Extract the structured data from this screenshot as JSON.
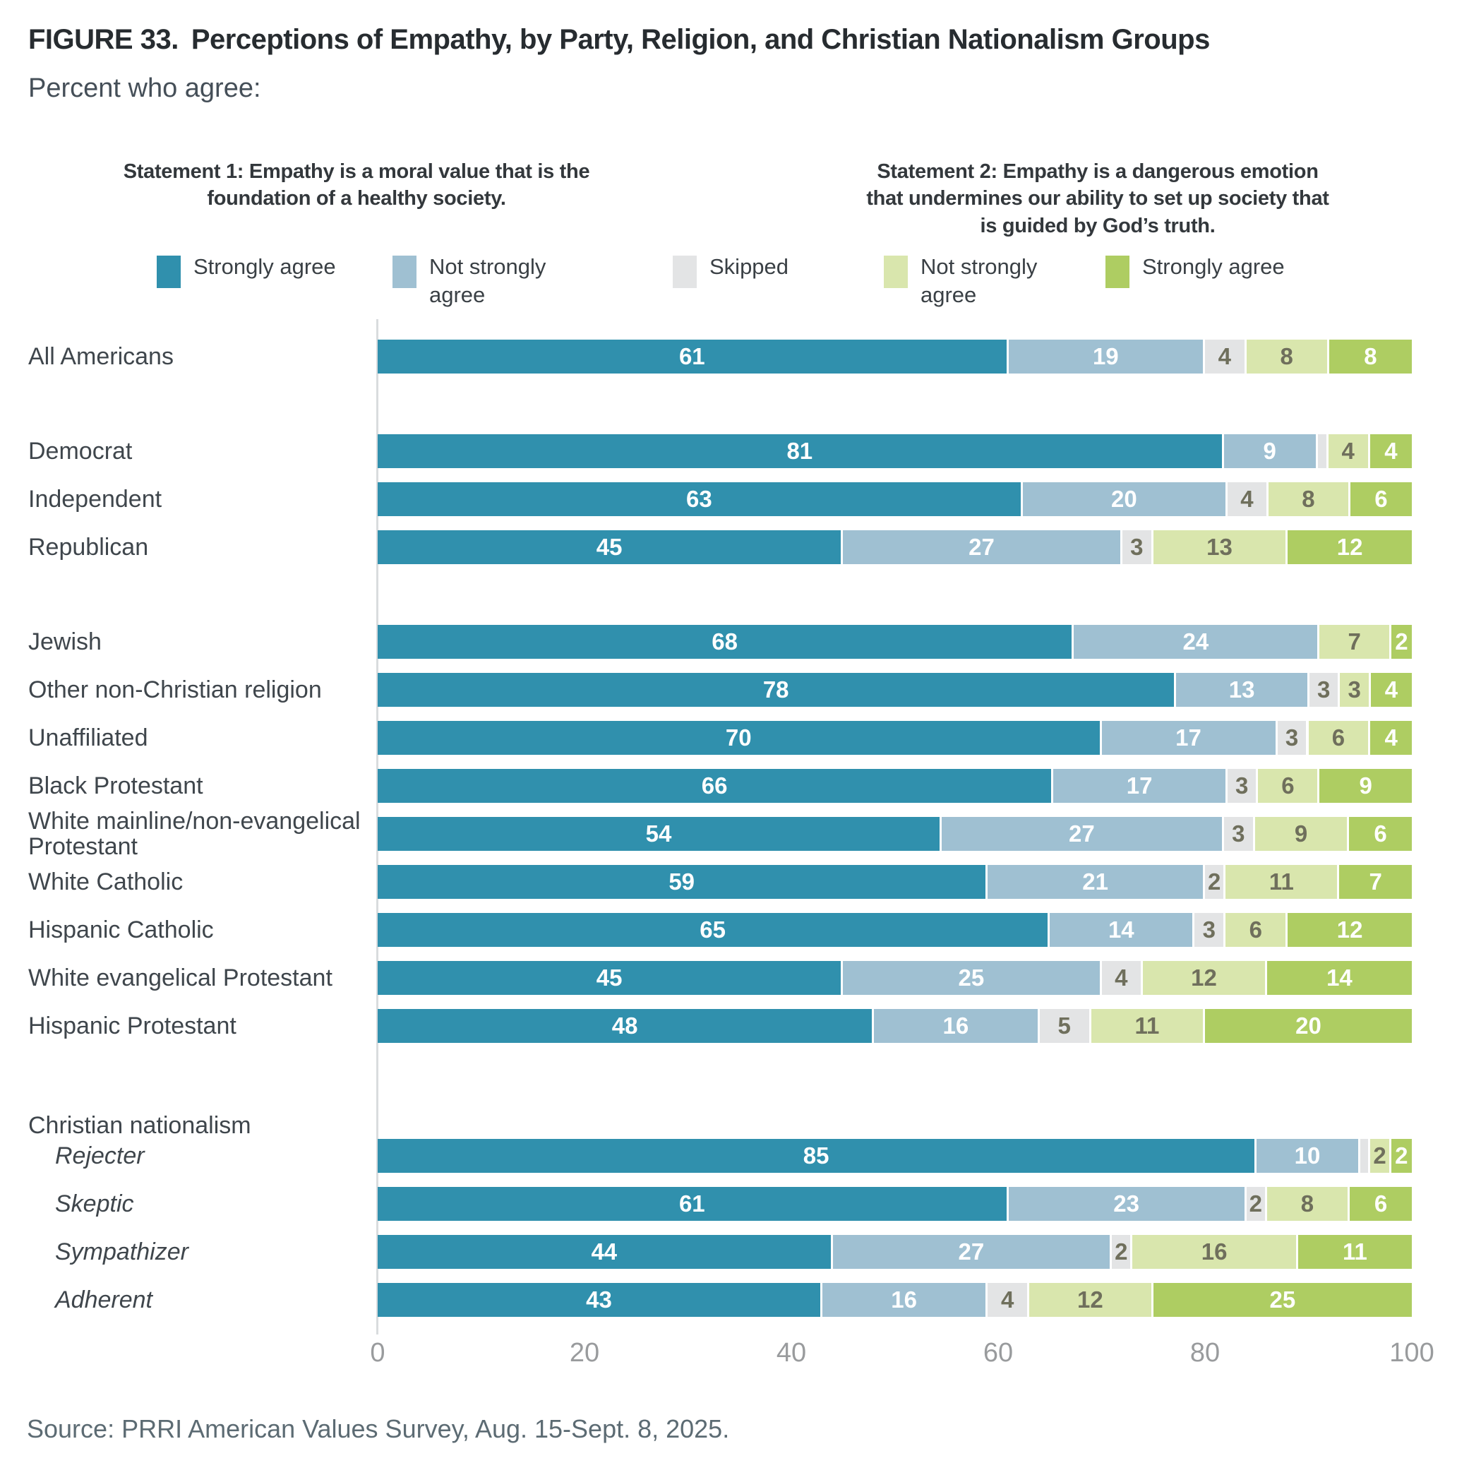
{
  "figure": {
    "title_prefix": "FIGURE 33.",
    "title": "Perceptions of Empathy, by Party, Religion, and Christian Nationalism Groups",
    "subtitle": "Percent who agree:",
    "source": "Source: PRRI American Values Survey, Aug. 15-Sept. 8, 2025."
  },
  "statements": {
    "statement1": "Statement 1: Empathy is a moral value that is the foundation of a healthy society.",
    "statement2": "Statement 2: Empathy is a dangerous emotion that undermines our ability to set up society that is guided by God’s truth."
  },
  "legend": [
    {
      "label": "Strongly agree",
      "color": "#3090ad"
    },
    {
      "label": "Not strongly agree",
      "color": "#9fc0d2"
    },
    {
      "label": "Skipped",
      "color": "#e3e4e5"
    },
    {
      "label": "Not strongly agree",
      "color": "#d9e6ad"
    },
    {
      "label": "Strongly agree",
      "color": "#aecd62"
    }
  ],
  "chart_data": {
    "type": "bar",
    "orientation": "horizontal",
    "stacked": true,
    "xlim": [
      0,
      100
    ],
    "x_ticks": [
      0,
      20,
      40,
      60,
      80,
      100
    ],
    "series_labels": [
      "Strongly agree",
      "Not strongly agree",
      "Skipped",
      "Not strongly agree (dangerous)",
      "Strongly agree (dangerous)"
    ],
    "series_colors": [
      "#3090ad",
      "#9fc0d2",
      "#e3e4e5",
      "#d9e6ad",
      "#aecd62"
    ],
    "label_colors": [
      "#ffffff",
      "#ffffff",
      "#6f6f5c",
      "#6f6f5c",
      "#ffffff"
    ],
    "groups": [
      {
        "rows": [
          {
            "label": "All Americans",
            "values": [
              61,
              19,
              4,
              8,
              8
            ]
          }
        ]
      },
      {
        "rows": [
          {
            "label": "Democrat",
            "values": [
              81,
              9,
              1,
              4,
              4
            ]
          },
          {
            "label": "Independent",
            "values": [
              63,
              20,
              4,
              8,
              6
            ]
          },
          {
            "label": "Republican",
            "values": [
              45,
              27,
              3,
              13,
              12
            ]
          }
        ]
      },
      {
        "rows": [
          {
            "label": "Jewish",
            "values": [
              68,
              24,
              0,
              7,
              2
            ]
          },
          {
            "label": "Other non-Christian religion",
            "values": [
              78,
              13,
              3,
              3,
              4
            ]
          },
          {
            "label": "Unaffiliated",
            "values": [
              70,
              17,
              3,
              6,
              4
            ]
          },
          {
            "label": "Black Protestant",
            "values": [
              66,
              17,
              3,
              6,
              9
            ]
          },
          {
            "label": "White mainline/non-evangelical Protestant",
            "values": [
              54,
              27,
              3,
              9,
              6
            ]
          },
          {
            "label": "White Catholic",
            "values": [
              59,
              21,
              2,
              11,
              7
            ]
          },
          {
            "label": "Hispanic Catholic",
            "values": [
              65,
              14,
              3,
              6,
              12
            ]
          },
          {
            "label": "White evangelical Protestant",
            "values": [
              45,
              25,
              4,
              12,
              14
            ]
          },
          {
            "label": "Hispanic Protestant",
            "values": [
              48,
              16,
              5,
              11,
              20
            ]
          }
        ]
      },
      {
        "header": "Christian nationalism",
        "rows": [
          {
            "label": "Rejecter",
            "italic": true,
            "values": [
              85,
              10,
              1,
              2,
              2
            ]
          },
          {
            "label": "Skeptic",
            "italic": true,
            "values": [
              61,
              23,
              2,
              8,
              6
            ]
          },
          {
            "label": "Sympathizer",
            "italic": true,
            "values": [
              44,
              27,
              2,
              16,
              11
            ]
          },
          {
            "label": "Adherent",
            "italic": true,
            "values": [
              43,
              16,
              4,
              12,
              25
            ]
          }
        ]
      }
    ]
  }
}
